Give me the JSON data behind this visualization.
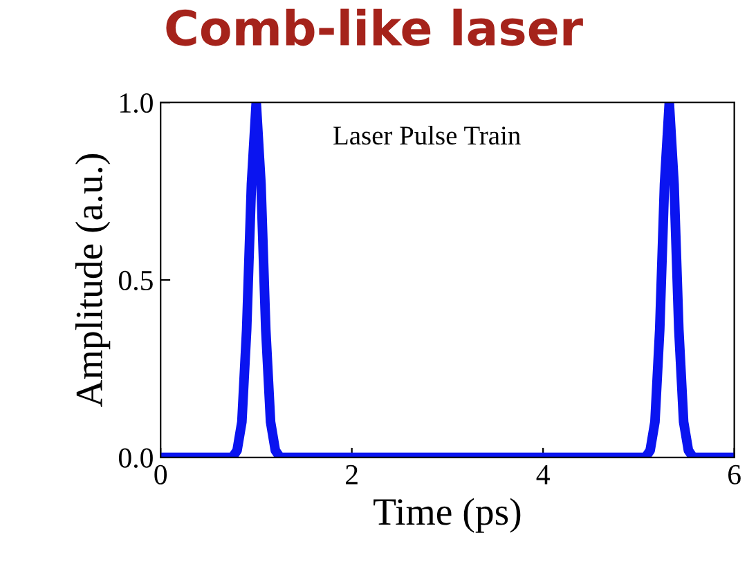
{
  "chart_data": {
    "type": "line",
    "title": "Comb-like laser",
    "xlabel": "Time (ps)",
    "ylabel": "Amplitude (a.u.)",
    "annotations": [
      "Laser Pulse Train"
    ],
    "series": [
      {
        "color": "#0a14f0",
        "x": [
          0,
          0.75,
          0.8,
          0.85,
          0.9,
          0.95,
          1.0,
          1.05,
          1.1,
          1.15,
          1.2,
          1.25,
          5.07,
          5.12,
          5.17,
          5.22,
          5.27,
          5.32,
          5.37,
          5.42,
          5.47,
          5.52,
          5.57,
          6
        ],
        "values": [
          0,
          0,
          0.02,
          0.1,
          0.36,
          0.77,
          1.0,
          0.77,
          0.36,
          0.1,
          0.02,
          0,
          0,
          0.02,
          0.1,
          0.36,
          0.77,
          1.0,
          0.77,
          0.36,
          0.1,
          0.02,
          0,
          0
        ]
      }
    ],
    "xlim": [
      0,
      6
    ],
    "xticks": [
      0,
      2,
      4,
      6
    ],
    "ylim": [
      0,
      1.0
    ],
    "yticks": [
      {
        "value": 0,
        "label": "0.0"
      },
      {
        "value": 0.5,
        "label": "0.5"
      },
      {
        "value": 1.0,
        "label": "1.0"
      }
    ],
    "grid": false,
    "legend": false,
    "marker": "none",
    "line_style": "solid"
  }
}
